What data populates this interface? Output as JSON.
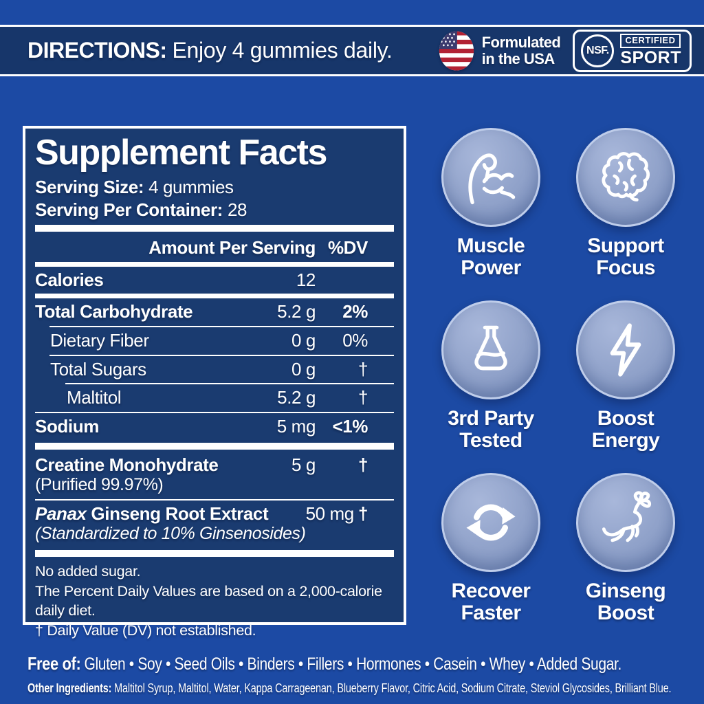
{
  "colors": {
    "background": "#1c4aa4",
    "strip": "#17366a",
    "panel": "#1a3b70",
    "white": "#ffffff",
    "circle_fill": "#8fa1c9",
    "circle_border": "#bfcdea",
    "flag_red": "#b22234",
    "flag_blue": "#3c3b6e"
  },
  "top_bar": {
    "directions_label": "DIRECTIONS:",
    "directions_text": "Enjoy 4 gummies daily.",
    "usa_line1": "Formulated",
    "usa_line2": "in the USA",
    "nsf": "NSF.",
    "certified": "CERTIFIED",
    "sport": "SPORT"
  },
  "supplement_facts": {
    "title": "Supplement Facts",
    "serving_size_label": "Serving Size:",
    "serving_size_value": "4 gummies",
    "serving_per_label": "Serving Per Container:",
    "serving_per_value": "28",
    "header": {
      "amount": "Amount Per Serving",
      "dv": "%DV"
    },
    "rows": [
      {
        "name": "Calories",
        "amount": "12",
        "dv": "",
        "bold": true,
        "divider_below": "medium",
        "divider_indent": 0
      },
      {
        "name": "Total Carbohydrate",
        "amount": "5.2 g",
        "dv": "2%",
        "bold": true,
        "divider_below": "thin",
        "divider_indent": 1
      },
      {
        "name": "Dietary Fiber",
        "amount": "0 g",
        "dv": "0%",
        "indent": 1,
        "divider_below": "thin",
        "divider_indent": 1
      },
      {
        "name": "Total Sugars",
        "amount": "0 g",
        "dv": "†",
        "indent": 1,
        "divider_below": "thin",
        "divider_indent": 2
      },
      {
        "name": "Maltitol",
        "amount": "5.2 g",
        "dv": "†",
        "indent": 2,
        "divider_below": "thin",
        "divider_indent": 0
      },
      {
        "name": "Sodium",
        "amount": "5 mg",
        "dv": "<1%",
        "bold": true,
        "divider_below": "thick",
        "divider_indent": 0
      },
      {
        "name": "Creatine Monohydrate",
        "sub": "(Purified 99.97%)",
        "amount": "5 g",
        "dv": "†",
        "bold": true,
        "divider_below": "thin",
        "divider_indent": 0
      },
      {
        "name_italic": "Panax",
        "name": " Ginseng Root Extract",
        "sub": "(Standardized to 10% Ginsenosides)",
        "sub_italic": true,
        "amount": "50 mg",
        "dv": "†",
        "bold": true,
        "divider_below": "thick",
        "divider_indent": 0
      }
    ],
    "footnotes": [
      "No added sugar.",
      "The Percent Daily Values are based on a 2,000-calorie daily diet.",
      "† Daily Value (DV) not established."
    ]
  },
  "benefits": [
    {
      "icon": "muscle-icon",
      "label_lines": [
        "Muscle",
        "Power"
      ]
    },
    {
      "icon": "brain-icon",
      "label_lines": [
        "Support",
        "Focus"
      ]
    },
    {
      "icon": "flask-icon",
      "label_lines": [
        "3rd Party",
        "Tested"
      ]
    },
    {
      "icon": "bolt-icon",
      "label_lines": [
        "Boost",
        "Energy"
      ]
    },
    {
      "icon": "refresh-icon",
      "label_lines": [
        "Recover",
        "Faster"
      ]
    },
    {
      "icon": "ginseng-icon",
      "label_lines": [
        "Ginseng",
        "Boost"
      ]
    }
  ],
  "bottom": {
    "free_of_label": "Free of:",
    "free_of_text": "Gluten • Soy • Seed Oils • Binders • Fillers • Hormones • Casein • Whey • Added Sugar.",
    "other_label": "Other Ingredients:",
    "other_text": "Maltitol Syrup, Maltitol, Water, Kappa Carrageenan, Blueberry Flavor, Citric Acid, Sodium Citrate, Steviol Glycosides, Brilliant Blue."
  }
}
